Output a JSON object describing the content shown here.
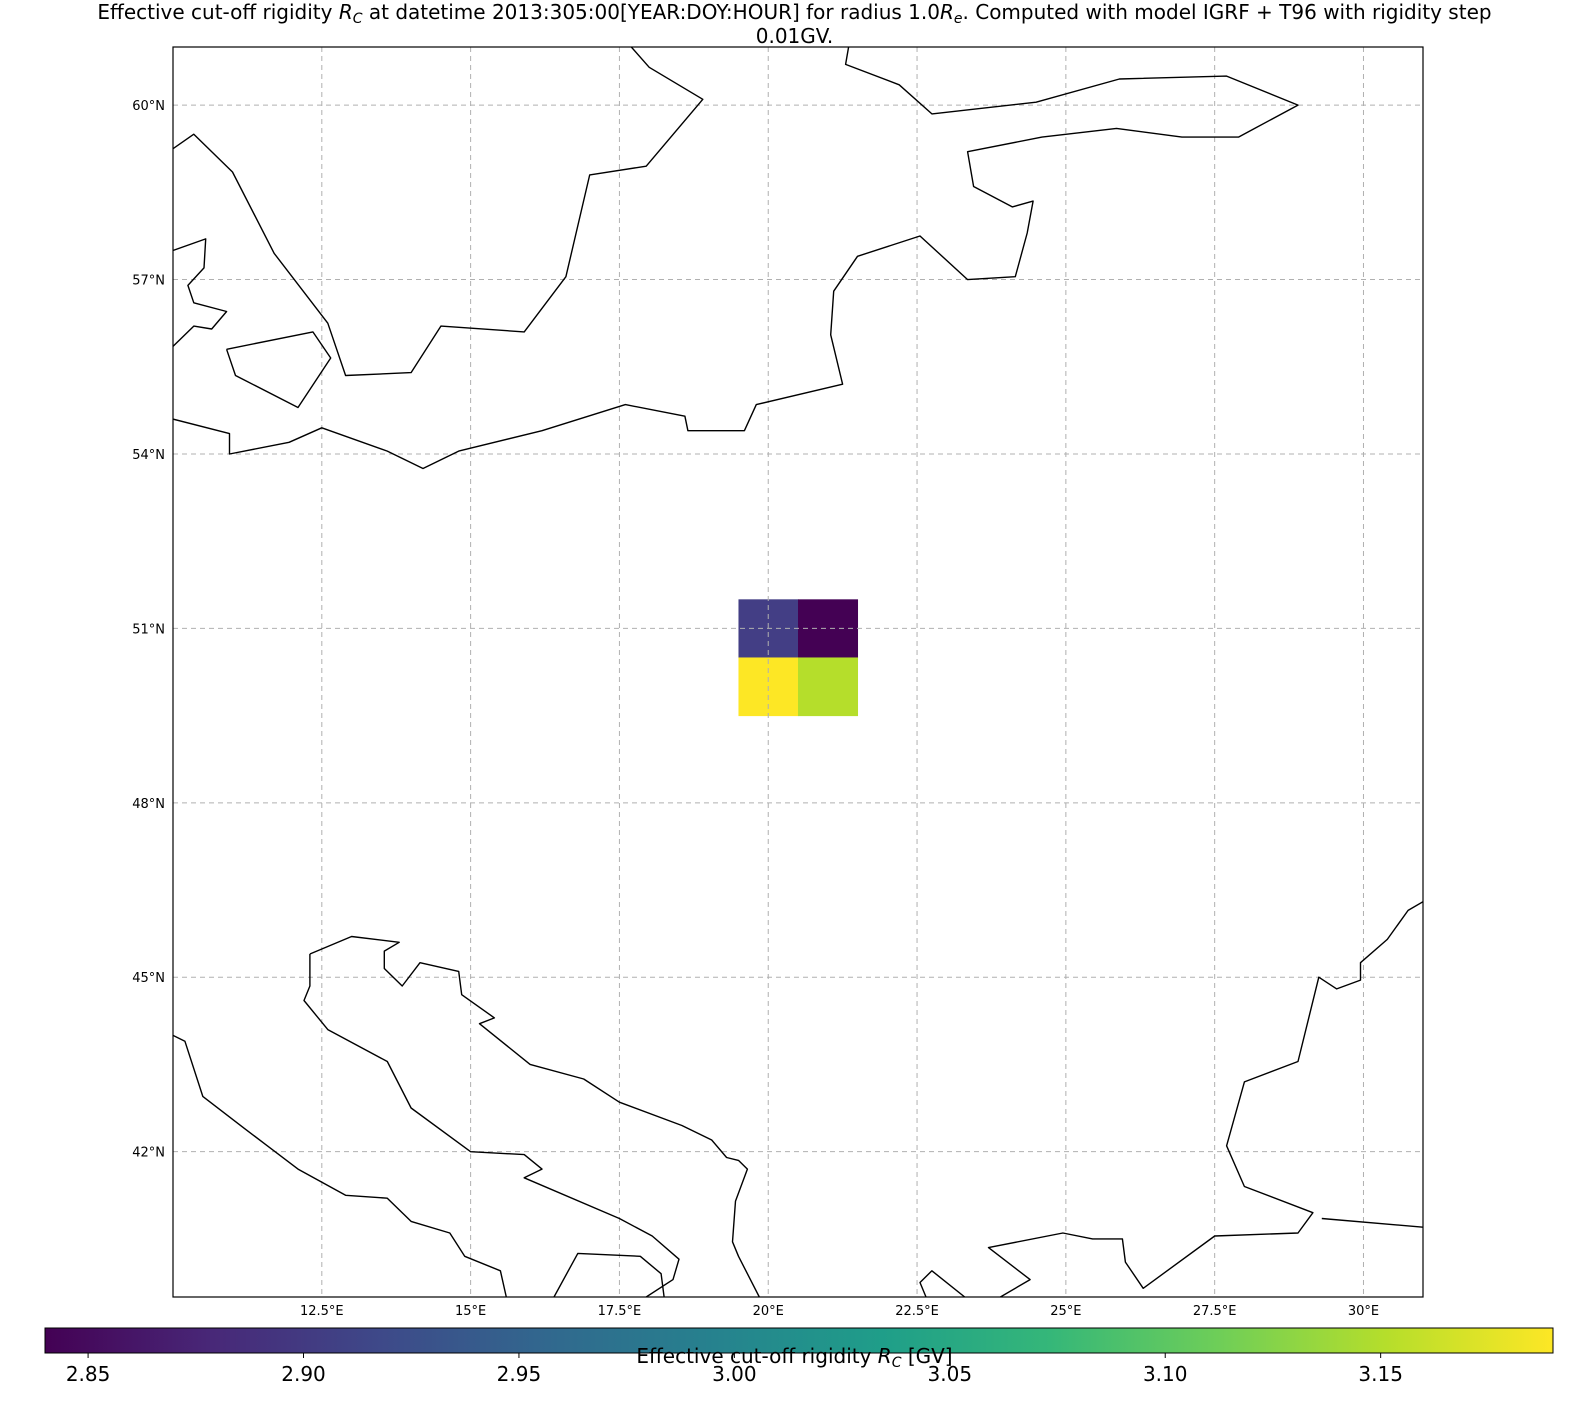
{
  "title": {
    "prefix": "Effective cut-off rigidity ",
    "r_symbol": "R",
    "r_sub": "C",
    "middle": " at datetime 2013:305:00[YEAR:DOY:HOUR] for radius 1.0",
    "re_sub": "e",
    "suffix": ". Computed with model IGRF + T96 with rigidity step",
    "line2": "0.01GV."
  },
  "map": {
    "lon_range": [
      10.0,
      31.0
    ],
    "lat_range": [
      39.5,
      61.0
    ],
    "lat_ticks": [
      {
        "value": 60,
        "label": "60°N"
      },
      {
        "value": 57,
        "label": "57°N"
      },
      {
        "value": 54,
        "label": "54°N"
      },
      {
        "value": 51,
        "label": "51°N"
      },
      {
        "value": 48,
        "label": "48°N"
      },
      {
        "value": 45,
        "label": "45°N"
      },
      {
        "value": 42,
        "label": "42°N"
      }
    ],
    "lon_ticks": [
      {
        "value": 12.5,
        "label": "12.5°E"
      },
      {
        "value": 15,
        "label": "15°E"
      },
      {
        "value": 17.5,
        "label": "17.5°E"
      },
      {
        "value": 20,
        "label": "20°E"
      },
      {
        "value": 22.5,
        "label": "22.5°E"
      },
      {
        "value": 25,
        "label": "25°E"
      },
      {
        "value": 27.5,
        "label": "27.5°E"
      },
      {
        "value": 30,
        "label": "30°E"
      }
    ],
    "gridlines": true,
    "coastline_color": "#000000",
    "grid_color": "#b0b0b0",
    "coastlines": [
      [
        [
          10.0,
          59.25
        ],
        [
          10.35,
          59.5
        ],
        [
          11.0,
          58.85
        ],
        [
          11.7,
          57.45
        ],
        [
          12.6,
          56.25
        ],
        [
          12.9,
          55.35
        ],
        [
          14.0,
          55.4
        ],
        [
          14.5,
          56.2
        ],
        [
          15.9,
          56.1
        ],
        [
          16.6,
          57.05
        ],
        [
          17.0,
          58.8
        ],
        [
          17.95,
          58.95
        ],
        [
          18.9,
          60.1
        ],
        [
          18.0,
          60.65
        ],
        [
          17.7,
          61.0
        ]
      ],
      [
        [
          10.0,
          57.5
        ],
        [
          10.55,
          57.7
        ],
        [
          10.52,
          57.2
        ],
        [
          10.25,
          56.9
        ],
        [
          10.35,
          56.6
        ],
        [
          10.9,
          56.45
        ],
        [
          10.65,
          56.15
        ],
        [
          10.35,
          56.2
        ],
        [
          10.0,
          55.85
        ]
      ],
      [
        [
          10.9,
          55.8
        ],
        [
          12.35,
          56.1
        ],
        [
          12.65,
          55.65
        ],
        [
          12.1,
          54.8
        ],
        [
          11.05,
          55.35
        ],
        [
          10.9,
          55.8
        ]
      ],
      [
        [
          10.0,
          54.6
        ],
        [
          10.95,
          54.35
        ],
        [
          10.95,
          54.0
        ],
        [
          11.95,
          54.2
        ],
        [
          12.5,
          54.45
        ],
        [
          13.6,
          54.05
        ],
        [
          14.2,
          53.75
        ],
        [
          14.8,
          54.05
        ],
        [
          16.2,
          54.4
        ],
        [
          17.6,
          54.85
        ],
        [
          18.6,
          54.65
        ],
        [
          18.65,
          54.4
        ],
        [
          19.6,
          54.4
        ],
        [
          19.8,
          54.85
        ],
        [
          21.25,
          55.2
        ],
        [
          21.05,
          56.05
        ],
        [
          21.1,
          56.8
        ],
        [
          21.5,
          57.4
        ],
        [
          22.55,
          57.75
        ],
        [
          23.35,
          57.0
        ],
        [
          24.15,
          57.05
        ],
        [
          24.35,
          57.8
        ],
        [
          24.45,
          58.35
        ],
        [
          24.1,
          58.25
        ],
        [
          23.45,
          58.6
        ],
        [
          23.35,
          59.2
        ],
        [
          24.6,
          59.45
        ],
        [
          25.85,
          59.6
        ],
        [
          26.95,
          59.45
        ],
        [
          27.9,
          59.45
        ],
        [
          28.9,
          60.0
        ],
        [
          27.7,
          60.5
        ],
        [
          25.9,
          60.45
        ],
        [
          24.5,
          60.05
        ],
        [
          22.75,
          59.85
        ],
        [
          22.2,
          60.35
        ],
        [
          21.3,
          60.7
        ],
        [
          21.35,
          61.0
        ]
      ],
      [
        [
          12.3,
          45.4
        ],
        [
          13.0,
          45.7
        ],
        [
          13.8,
          45.6
        ],
        [
          13.55,
          45.45
        ],
        [
          13.55,
          45.15
        ],
        [
          13.85,
          44.85
        ],
        [
          14.15,
          45.25
        ],
        [
          14.8,
          45.1
        ],
        [
          14.85,
          44.7
        ],
        [
          15.4,
          44.3
        ],
        [
          15.15,
          44.2
        ],
        [
          16.0,
          43.5
        ],
        [
          16.9,
          43.25
        ],
        [
          17.5,
          42.85
        ],
        [
          18.55,
          42.45
        ],
        [
          19.05,
          42.2
        ],
        [
          19.3,
          41.9
        ],
        [
          19.5,
          41.85
        ],
        [
          19.65,
          41.7
        ],
        [
          19.45,
          41.15
        ],
        [
          19.4,
          40.45
        ],
        [
          19.5,
          40.2
        ],
        [
          19.85,
          39.5
        ]
      ],
      [
        [
          10.0,
          44.0
        ],
        [
          10.2,
          43.9
        ],
        [
          10.5,
          42.95
        ],
        [
          11.2,
          42.4
        ],
        [
          12.1,
          41.7
        ],
        [
          12.9,
          41.25
        ],
        [
          13.6,
          41.2
        ],
        [
          14.0,
          40.8
        ],
        [
          14.65,
          40.6
        ],
        [
          14.9,
          40.2
        ],
        [
          15.5,
          39.95
        ],
        [
          15.6,
          39.5
        ]
      ],
      [
        [
          12.3,
          45.4
        ],
        [
          12.3,
          44.85
        ],
        [
          12.2,
          44.6
        ],
        [
          12.6,
          44.1
        ],
        [
          13.6,
          43.55
        ],
        [
          14.0,
          42.75
        ],
        [
          15.0,
          42.0
        ],
        [
          15.9,
          41.95
        ],
        [
          16.2,
          41.7
        ],
        [
          15.9,
          41.55
        ],
        [
          17.5,
          40.85
        ],
        [
          18.05,
          40.55
        ],
        [
          18.5,
          40.15
        ],
        [
          18.4,
          39.8
        ],
        [
          17.95,
          39.5
        ]
      ],
      [
        [
          16.4,
          39.5
        ],
        [
          16.8,
          40.25
        ],
        [
          17.85,
          40.2
        ],
        [
          18.2,
          39.9
        ],
        [
          18.25,
          39.5
        ]
      ],
      [
        [
          22.65,
          39.5
        ],
        [
          22.55,
          39.75
        ],
        [
          22.75,
          39.95
        ],
        [
          23.3,
          39.5
        ]
      ],
      [
        [
          23.9,
          39.5
        ],
        [
          24.4,
          39.8
        ],
        [
          23.7,
          40.35
        ],
        [
          24.95,
          40.6
        ],
        [
          25.45,
          40.5
        ],
        [
          25.95,
          40.5
        ],
        [
          26.0,
          40.1
        ],
        [
          26.3,
          39.65
        ],
        [
          27.5,
          40.55
        ],
        [
          28.9,
          40.6
        ],
        [
          29.15,
          40.95
        ],
        [
          28.0,
          41.4
        ],
        [
          27.7,
          42.1
        ],
        [
          28.0,
          43.2
        ],
        [
          28.9,
          43.55
        ],
        [
          29.25,
          45.0
        ],
        [
          29.55,
          44.8
        ],
        [
          29.95,
          44.95
        ],
        [
          29.95,
          45.25
        ],
        [
          30.4,
          45.65
        ],
        [
          30.75,
          46.15
        ],
        [
          31.0,
          46.3
        ]
      ],
      [
        [
          31.0,
          40.7
        ],
        [
          29.3,
          40.85
        ]
      ]
    ],
    "cells": [
      {
        "lon": 20.0,
        "lat": 51.0,
        "value": 2.91,
        "color": "#433e85"
      },
      {
        "lon": 21.0,
        "lat": 51.0,
        "value": 2.845,
        "color": "#440154"
      },
      {
        "lon": 20.0,
        "lat": 50.0,
        "value": 3.18,
        "color": "#fde725"
      },
      {
        "lon": 21.0,
        "lat": 50.0,
        "value": 3.145,
        "color": "#b5de2b"
      }
    ],
    "cell_size_deg": 1.0
  },
  "colorbar": {
    "vmin": 2.84,
    "vmax": 3.19,
    "ticks": [
      {
        "value": 2.85,
        "label": "2.85"
      },
      {
        "value": 2.9,
        "label": "2.90"
      },
      {
        "value": 2.95,
        "label": "2.95"
      },
      {
        "value": 3.0,
        "label": "3.00"
      },
      {
        "value": 3.05,
        "label": "3.05"
      },
      {
        "value": 3.1,
        "label": "3.10"
      },
      {
        "value": 3.15,
        "label": "3.15"
      }
    ],
    "label_prefix": "Effective cut-off rigidity ",
    "label_symbol": "R",
    "label_sub": "C",
    "label_suffix": " [GV]",
    "colormap": [
      "#440154",
      "#482878",
      "#3e4989",
      "#31688e",
      "#26828e",
      "#1f9e89",
      "#35b779",
      "#6ece58",
      "#b5de2b",
      "#fde725"
    ]
  }
}
